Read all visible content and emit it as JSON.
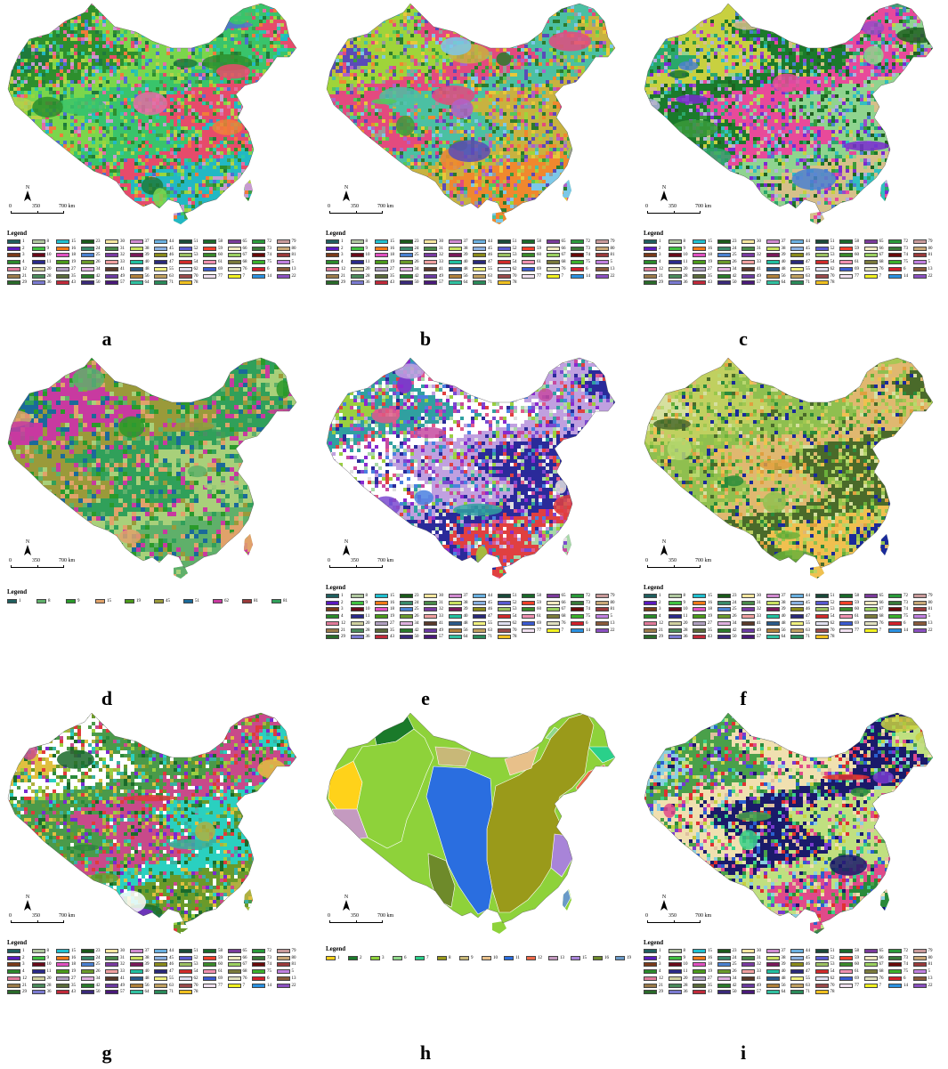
{
  "figure": {
    "panels": [
      {
        "letter": "a",
        "legend_title": "Legend",
        "legend_kind": "full81",
        "palette": [
          "#1e7a3c",
          "#2d8f2d",
          "#7bd64c",
          "#39c46b",
          "#e64b6b",
          "#22b8c4",
          "#c79bd0",
          "#f07c3a",
          "#98d63d",
          "#4f6fd1",
          "#3e9e4a",
          "#e46ca3",
          "#b8d14a",
          "#2ac9a8"
        ],
        "background": "#6a8c2a"
      },
      {
        "letter": "b",
        "legend_title": "Legend",
        "legend_kind": "full81",
        "palette": [
          "#3b9c3b",
          "#5a4bb8",
          "#9fd43a",
          "#e34a7f",
          "#4bc0a3",
          "#c8b240",
          "#f0882e",
          "#7dc8e8",
          "#9a9a9a",
          "#2c7a2c",
          "#e8c83a",
          "#b060c8",
          "#56c85a"
        ],
        "background": "#4aa03a"
      },
      {
        "letter": "c",
        "legend_title": "Legend",
        "legend_kind": "full81",
        "palette": [
          "#7a2ad0",
          "#4a80d0",
          "#2aa86a",
          "#c8d040",
          "#1b7a2b",
          "#e84a9a",
          "#8fd48f",
          "#d6c08a",
          "#30c0c0",
          "#9a4ac8",
          "#3a9a3a",
          "#b0b0e0",
          "#206020"
        ],
        "background": "#3c7a3c"
      },
      {
        "letter": "d",
        "legend_title": "Legend",
        "legend_kind": "short",
        "palette": [
          "#5fb06a",
          "#e0a26a",
          "#2a9a2a",
          "#1a6a9a",
          "#c83aa0",
          "#9a9a3a",
          "#30a05a",
          "#a8d07a"
        ],
        "background": "#5cad62"
      },
      {
        "letter": "e",
        "legend_title": "Legend",
        "legend_kind": "full81",
        "palette": [
          "#c74aa0",
          "#8a2ad0",
          "#4a80e0",
          "#e05a8a",
          "#9ad040",
          "#30a0a0",
          "#ffffff",
          "#c0a0e0",
          "#2a2a9a",
          "#e04040",
          "#a8d8a8",
          "#7a4ad0",
          "#e0e0e0"
        ],
        "background": "#9a58b8"
      },
      {
        "letter": "f",
        "legend_title": "Legend",
        "legend_kind": "full81",
        "palette": [
          "#9ac84a",
          "#b8d870",
          "#6ab03a",
          "#e0a040",
          "#2a8a3a",
          "#d6e0a0",
          "#c0d060",
          "#8fbf4f",
          "#e0b870",
          "#4a6a2a",
          "#f0c050",
          "#1a2a9a",
          "#a0c850"
        ],
        "background": "#a7cc62"
      },
      {
        "letter": "g",
        "legend_title": "Legend",
        "legend_kind": "full81",
        "palette": [
          "#2a8a3a",
          "#1a6a2a",
          "#e03a3a",
          "#3ab0a0",
          "#9ad040",
          "#7a2ad0",
          "#e0c040",
          "#ffffff",
          "#4a9a4a",
          "#c84a8a",
          "#2ad0c0",
          "#6a9a2a",
          "#b0b040"
        ],
        "background": "#2f8a3c"
      },
      {
        "letter": "h",
        "legend_title": "Legend",
        "legend_kind": "region19",
        "region_colors": {
          "r1": "#ffd21a",
          "r2": "#1a7a2a",
          "r3": "#8ed23a",
          "r6": "#8fd88a",
          "r7": "#2ad08a",
          "r8": "#9a9a1a",
          "r9": "#c8b878",
          "r10": "#e8c08a",
          "r11": "#2a6ee0",
          "r12": "#f06a4a",
          "r13": "#c49ac0",
          "r15": "#a884d8",
          "r16": "#6e8a2a",
          "r19": "#6a9ac8"
        }
      },
      {
        "letter": "i",
        "legend_title": "Legend",
        "legend_kind": "full81",
        "palette": [
          "#e04a8a",
          "#2a8a3a",
          "#3ad08a",
          "#c8d040",
          "#7a3ad0",
          "#e0c0a0",
          "#2a60d0",
          "#e03030",
          "#8ad0e0",
          "#4aa04a",
          "#f0e0b0",
          "#1a1a6a",
          "#c0e080"
        ],
        "background": "#3f8f4a"
      }
    ],
    "scale": {
      "zero": "0",
      "mid": "350",
      "end": "700 km",
      "north": "N"
    },
    "legend_full81": [
      {
        "n": "1",
        "c": "#1f5f5f"
      },
      {
        "n": "8",
        "c": "#b0c8a0"
      },
      {
        "n": "15",
        "c": "#20c0d0"
      },
      {
        "n": "23",
        "c": "#1a5a1a"
      },
      {
        "n": "30",
        "c": "#f5e6a0"
      },
      {
        "n": "37",
        "c": "#d08ad0"
      },
      {
        "n": "44",
        "c": "#6ab0e0"
      },
      {
        "n": "51",
        "c": "#1a4a3a"
      },
      {
        "n": "58",
        "c": "#1a6a2a"
      },
      {
        "n": "65",
        "c": "#7a3a9a"
      },
      {
        "n": "72",
        "c": "#2a9a3a"
      },
      {
        "n": "79",
        "c": "#c89a9a"
      },
      {
        "n": "2",
        "c": "#5a1ac0"
      },
      {
        "n": "9",
        "c": "#40c040"
      },
      {
        "n": "16",
        "c": "#f07a1a"
      },
      {
        "n": "24",
        "c": "#3a8a6a"
      },
      {
        "n": "31",
        "c": "#4a8a4a"
      },
      {
        "n": "38",
        "c": "#c8e060"
      },
      {
        "n": "45",
        "c": "#8ab0e0"
      },
      {
        "n": "52",
        "c": "#5a5ad0"
      },
      {
        "n": "59",
        "c": "#f0402a"
      },
      {
        "n": "66",
        "c": "#f0e8c0"
      },
      {
        "n": "73",
        "c": "#3a7a3a"
      },
      {
        "n": "80",
        "c": "#c8a878"
      },
      {
        "n": "3",
        "c": "#7a3a1a"
      },
      {
        "n": "10",
        "c": "#6a0a1a"
      },
      {
        "n": "18",
        "c": "#e050c0"
      },
      {
        "n": "25",
        "c": "#4a80d0"
      },
      {
        "n": "32",
        "c": "#7a3aa0"
      },
      {
        "n": "39",
        "c": "#7a1a5a"
      },
      {
        "n": "46",
        "c": "#8a8a1a"
      },
      {
        "n": "53",
        "c": "#9ac060"
      },
      {
        "n": "60",
        "c": "#3a8a2a"
      },
      {
        "n": "67",
        "c": "#9ad060"
      },
      {
        "n": "74",
        "c": "#6a0a0a"
      },
      {
        "n": "81",
        "c": "#9a3a3a"
      },
      {
        "n": "4",
        "c": "#2a8a2a"
      },
      {
        "n": "11",
        "c": "#2a2a8a"
      },
      {
        "n": "19",
        "c": "#4a9a1a"
      },
      {
        "n": "26",
        "c": "#6a9a2a"
      },
      {
        "n": "33",
        "c": "#f0a0a0"
      },
      {
        "n": "40",
        "c": "#20c0a0"
      },
      {
        "n": "47",
        "c": "#2a2a7a"
      },
      {
        "n": "54",
        "c": "#d02a2a"
      },
      {
        "n": "61",
        "c": "#f090b0"
      },
      {
        "n": "68",
        "c": "#7a7a3a"
      },
      {
        "n": "75",
        "c": "#3ab02a"
      },
      {
        "n": "5",
        "c": "#c080e0"
      },
      {
        "n": "12",
        "c": "#e07a9a"
      },
      {
        "n": "20",
        "c": "#d0d0a0"
      },
      {
        "n": "27",
        "c": "#b0a0c0"
      },
      {
        "n": "34",
        "c": "#e0b0e0"
      },
      {
        "n": "41",
        "c": "#5a3a2a"
      },
      {
        "n": "48",
        "c": "#2a5a8a"
      },
      {
        "n": "55",
        "c": "#f0f080"
      },
      {
        "n": "62",
        "c": "#e0e0f0"
      },
      {
        "n": "69",
        "c": "#3a5ad0"
      },
      {
        "n": "76",
        "c": "#e0e0c0"
      },
      {
        "n": "6",
        "c": "#d0202a"
      },
      {
        "n": "13",
        "c": "#8a5a3a"
      },
      {
        "n": "21",
        "c": "#9a7a4a"
      },
      {
        "n": "28",
        "c": "#4a8a5a"
      },
      {
        "n": "35",
        "c": "#5a6a3a"
      },
      {
        "n": "42",
        "c": "#2a7a2a"
      },
      {
        "n": "49",
        "c": "#6a3aa0"
      },
      {
        "n": "56",
        "c": "#b0803a"
      },
      {
        "n": "63",
        "c": "#c0a060"
      },
      {
        "n": "70",
        "c": "#9a4a4a"
      },
      {
        "n": "77",
        "c": "#f0e0f0"
      },
      {
        "n": "7",
        "c": "#f0f020"
      },
      {
        "n": "14",
        "c": "#2a90e0"
      },
      {
        "n": "22",
        "c": "#8a50c0"
      },
      {
        "n": "29",
        "c": "#2a6a2a"
      },
      {
        "n": "36",
        "c": "#7a7ad0"
      },
      {
        "n": "43",
        "c": "#c02a3a"
      },
      {
        "n": "50",
        "c": "#3a2a7a"
      },
      {
        "n": "57",
        "c": "#4a1a7a"
      },
      {
        "n": "64",
        "c": "#30c0a0"
      },
      {
        "n": "71",
        "c": "#2a8a5a"
      },
      {
        "n": "78",
        "c": "#f0c020"
      }
    ],
    "legend_short": [
      {
        "n": "1",
        "c": "#1f5f5f"
      },
      {
        "n": "8",
        "c": "#5fb06a"
      },
      {
        "n": "9",
        "c": "#2a9a2a"
      },
      {
        "n": "15",
        "c": "#e0a26a"
      },
      {
        "n": "19",
        "c": "#4a9a1a"
      },
      {
        "n": "45",
        "c": "#9a9a3a"
      },
      {
        "n": "51",
        "c": "#1a6a9a"
      },
      {
        "n": "62",
        "c": "#c83aa0"
      },
      {
        "n": "81",
        "c": "#9a3a3a"
      },
      {
        "n": "81",
        "c": "#30a05a"
      }
    ],
    "legend_region19": [
      {
        "n": "1",
        "c": "#ffd21a"
      },
      {
        "n": "2",
        "c": "#1a7a2a"
      },
      {
        "n": "3",
        "c": "#8ed23a"
      },
      {
        "n": "6",
        "c": "#8fd88a"
      },
      {
        "n": "7",
        "c": "#2ad08a"
      },
      {
        "n": "8",
        "c": "#9a9a1a"
      },
      {
        "n": "9",
        "c": "#c8b878"
      },
      {
        "n": "10",
        "c": "#e8c08a"
      },
      {
        "n": "11",
        "c": "#2a6ee0"
      },
      {
        "n": "12",
        "c": "#f06a4a"
      },
      {
        "n": "13",
        "c": "#c49ac0"
      },
      {
        "n": "15",
        "c": "#a884d8"
      },
      {
        "n": "16",
        "c": "#6e8a2a"
      },
      {
        "n": "19",
        "c": "#6a9ac8"
      }
    ]
  }
}
